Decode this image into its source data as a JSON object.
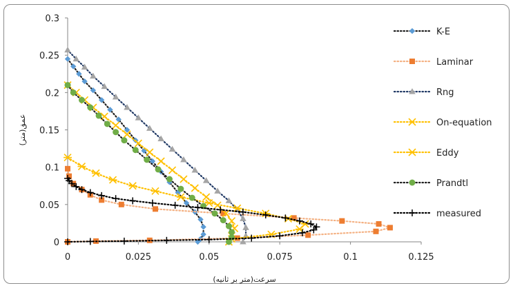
{
  "chart_data": {
    "type": "scatter",
    "xlabel": "سرعت(متر بر ثانیه)",
    "ylabel": "عمق(متر)",
    "xlim": [
      0,
      0.125
    ],
    "ylim": [
      0,
      0.3
    ],
    "xticks": [
      0,
      0.025,
      0.05,
      0.075,
      0.1,
      0.125
    ],
    "xtick_labels": [
      "0",
      "0.025",
      "0.05",
      "0.075",
      "0.1",
      "0.125"
    ],
    "yticks": [
      0,
      0.05,
      0.1,
      0.15,
      0.2,
      0.25,
      0.3
    ],
    "ytick_labels": [
      "0",
      "0.05",
      "0.1",
      "0.15",
      "0.2",
      "0.25",
      "0.3"
    ],
    "grid": false,
    "legend_position": "right",
    "series": [
      {
        "name": "K-E",
        "color": "#5b9bd5",
        "line_color": "#1f1f1f",
        "marker": "diamond",
        "x": [
          0,
          0.002,
          0.004,
          0.006,
          0.009,
          0.012,
          0.015,
          0.018,
          0.021,
          0.024,
          0.027,
          0.03,
          0.033,
          0.036,
          0.039,
          0.042,
          0.045,
          0.047,
          0.048,
          0.048,
          0.047,
          0.046
        ],
        "y": [
          0.245,
          0.235,
          0.225,
          0.215,
          0.203,
          0.19,
          0.177,
          0.164,
          0.15,
          0.136,
          0.122,
          0.108,
          0.094,
          0.08,
          0.066,
          0.052,
          0.04,
          0.03,
          0.02,
          0.01,
          0.004,
          0.0
        ]
      },
      {
        "name": "Laminar",
        "color": "#ed7d31",
        "line_color": "#f4b183",
        "marker": "square",
        "x": [
          0,
          0.0005,
          0.002,
          0.005,
          0.008,
          0.012,
          0.019,
          0.031,
          0.055,
          0.08,
          0.097,
          0.11,
          0.114,
          0.109,
          0.085,
          0.06,
          0.029,
          0.01,
          0.0
        ],
        "y": [
          0.098,
          0.088,
          0.078,
          0.07,
          0.063,
          0.056,
          0.05,
          0.044,
          0.038,
          0.032,
          0.028,
          0.024,
          0.019,
          0.014,
          0.009,
          0.005,
          0.002,
          0.001,
          0.0
        ]
      },
      {
        "name": "Rng",
        "color": "#a5a5a5",
        "line_color": "#1f3864",
        "marker": "triangle",
        "x": [
          0,
          0.003,
          0.006,
          0.009,
          0.013,
          0.017,
          0.021,
          0.025,
          0.029,
          0.033,
          0.037,
          0.041,
          0.045,
          0.049,
          0.053,
          0.057,
          0.06,
          0.062,
          0.063,
          0.063,
          0.062
        ],
        "y": [
          0.257,
          0.245,
          0.234,
          0.222,
          0.208,
          0.194,
          0.18,
          0.166,
          0.152,
          0.138,
          0.124,
          0.11,
          0.096,
          0.082,
          0.068,
          0.055,
          0.043,
          0.031,
          0.019,
          0.008,
          0.0
        ]
      },
      {
        "name": "On-equation",
        "color": "#ffc000",
        "line_color": "#ffc000",
        "marker": "x",
        "x": [
          0,
          0.003,
          0.006,
          0.009,
          0.013,
          0.017,
          0.021,
          0.025,
          0.029,
          0.033,
          0.037,
          0.041,
          0.045,
          0.049,
          0.053,
          0.056,
          0.058,
          0.059,
          0.058,
          0.057
        ],
        "y": [
          0.21,
          0.2,
          0.19,
          0.18,
          0.168,
          0.156,
          0.144,
          0.132,
          0.12,
          0.108,
          0.096,
          0.084,
          0.072,
          0.06,
          0.049,
          0.038,
          0.028,
          0.018,
          0.008,
          0.0
        ]
      },
      {
        "name": "Eddy",
        "color": "#ffc000",
        "line_color": "#ffc000",
        "marker": "asterisk",
        "x": [
          0,
          0.005,
          0.01,
          0.016,
          0.023,
          0.031,
          0.04,
          0.05,
          0.06,
          0.07,
          0.078,
          0.084,
          0.082,
          0.072,
          0.058
        ],
        "y": [
          0.113,
          0.101,
          0.092,
          0.083,
          0.075,
          0.068,
          0.06,
          0.052,
          0.045,
          0.038,
          0.031,
          0.024,
          0.017,
          0.01,
          0.004
        ]
      },
      {
        "name": "Prandtl",
        "color": "#70ad47",
        "line_color": "#1f1f1f",
        "marker": "circle",
        "x": [
          0,
          0.002,
          0.005,
          0.008,
          0.011,
          0.014,
          0.017,
          0.02,
          0.024,
          0.028,
          0.032,
          0.036,
          0.04,
          0.044,
          0.048,
          0.052,
          0.055,
          0.057,
          0.058,
          0.058,
          0.057
        ],
        "y": [
          0.21,
          0.2,
          0.19,
          0.18,
          0.169,
          0.158,
          0.147,
          0.136,
          0.123,
          0.11,
          0.097,
          0.084,
          0.071,
          0.059,
          0.048,
          0.038,
          0.029,
          0.021,
          0.013,
          0.006,
          0.0
        ]
      },
      {
        "name": "measured",
        "color": "#000000",
        "line_color": "#000000",
        "marker": "plus",
        "x": [
          0,
          0.0005,
          0.0015,
          0.003,
          0.005,
          0.008,
          0.012,
          0.017,
          0.023,
          0.03,
          0.038,
          0.046,
          0.054,
          0.062,
          0.07,
          0.077,
          0.082,
          0.086,
          0.088,
          0.087,
          0.083,
          0.075,
          0.065,
          0.05,
          0.035,
          0.02,
          0.008,
          0.0
        ],
        "y": [
          0.085,
          0.082,
          0.078,
          0.074,
          0.07,
          0.066,
          0.062,
          0.058,
          0.055,
          0.052,
          0.049,
          0.046,
          0.043,
          0.04,
          0.036,
          0.032,
          0.028,
          0.024,
          0.02,
          0.016,
          0.012,
          0.008,
          0.005,
          0.003,
          0.002,
          0.001,
          0.0005,
          0.0
        ]
      }
    ]
  }
}
